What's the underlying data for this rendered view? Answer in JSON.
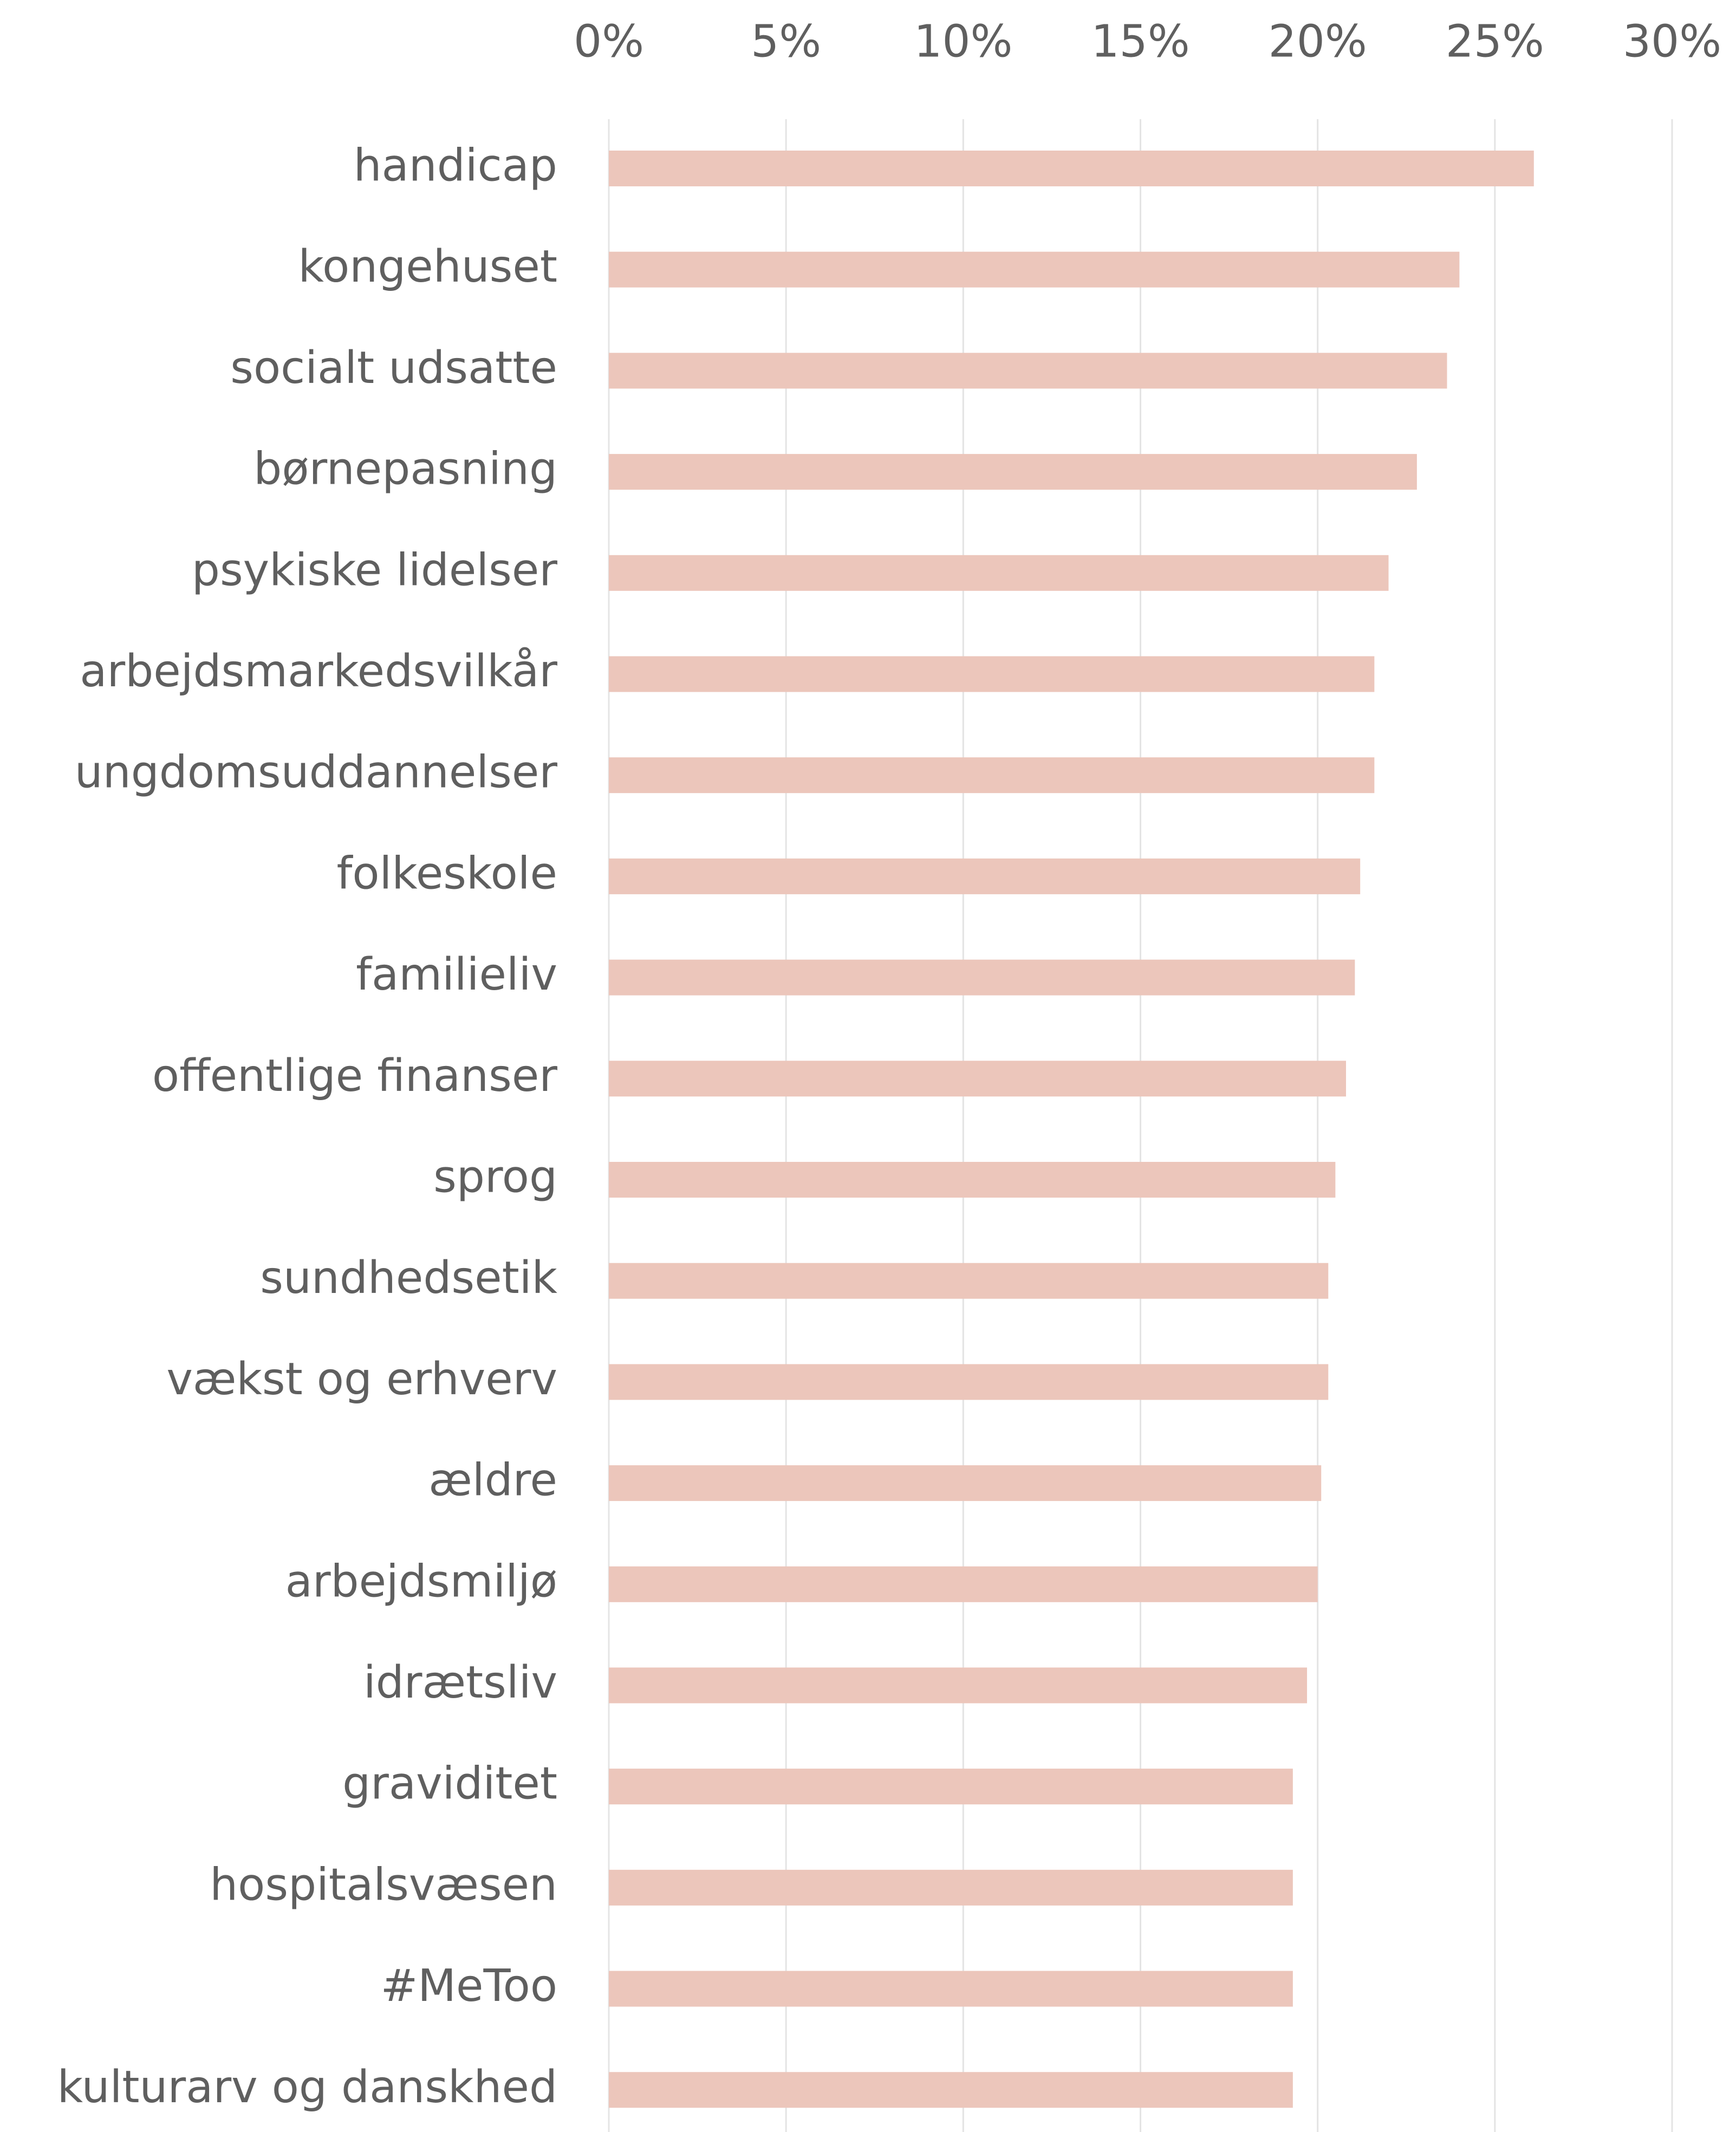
{
  "chart_data": {
    "type": "bar",
    "orientation": "horizontal",
    "categories": [
      "handicap",
      "kongehuset",
      "socialt udsatte",
      "børnepasning",
      "psykiske lidelser",
      "arbejdsmarkedsvilkår",
      "ungdomsuddannelser",
      "folkeskole",
      "familieliv",
      "offentlige finanser",
      "sprog",
      "sundhedsetik",
      "vækst og erhverv",
      "ældre",
      "arbejdsmiljø",
      "idrætsliv",
      "graviditet",
      "hospitalsvæsen",
      "#MeToo",
      "kulturarv og danskhed"
    ],
    "values": [
      26.1,
      24.0,
      23.65,
      22.8,
      22.0,
      21.6,
      21.6,
      21.2,
      21.05,
      20.8,
      20.5,
      20.3,
      20.3,
      20.1,
      20.0,
      19.7,
      19.3,
      19.3,
      19.3,
      19.3
    ],
    "color": "#ecc6bb",
    "xlim": [
      0,
      30
    ],
    "xticks": [
      {
        "value": 0,
        "label": "0%"
      },
      {
        "value": 5,
        "label": "5%"
      },
      {
        "value": 10,
        "label": "10%"
      },
      {
        "value": 15,
        "label": "15%"
      },
      {
        "value": 20,
        "label": "20%"
      },
      {
        "value": 25,
        "label": "25%"
      },
      {
        "value": 30,
        "label": "30%"
      }
    ],
    "grid": true
  }
}
